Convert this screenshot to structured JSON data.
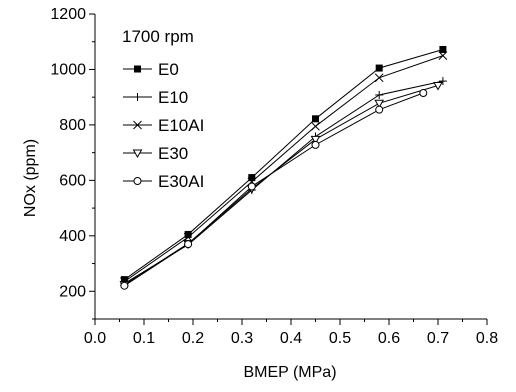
{
  "chart_data": {
    "type": "line",
    "title": "",
    "annotation": "1700 rpm",
    "xlabel": "BMEP (MPa)",
    "ylabel": "NOx (ppm)",
    "xlim": [
      0.0,
      0.8
    ],
    "ylim": [
      100,
      1200
    ],
    "x_ticks": [
      0.0,
      0.1,
      0.2,
      0.3,
      0.4,
      0.5,
      0.6,
      0.7,
      0.8
    ],
    "x_tick_labels": [
      "0.0",
      "0.1",
      "0.2",
      "0.3",
      "0.4",
      "0.5",
      "0.6",
      "0.7",
      "0.8"
    ],
    "y_ticks": [
      200,
      400,
      600,
      800,
      1000,
      1200
    ],
    "y_tick_labels": [
      "200",
      "400",
      "600",
      "800",
      "1000",
      "1200"
    ],
    "grid": false,
    "legend_placement": "top-left",
    "series": [
      {
        "name": "E0",
        "marker": "filled-square",
        "x": [
          0.06,
          0.19,
          0.32,
          0.45,
          0.58,
          0.71
        ],
        "y": [
          242,
          405,
          610,
          822,
          1005,
          1072
        ]
      },
      {
        "name": "E10",
        "marker": "plus",
        "x": [
          0.06,
          0.19,
          0.32,
          0.45,
          0.58,
          0.71
        ],
        "y": [
          228,
          368,
          565,
          758,
          908,
          958
        ]
      },
      {
        "name": "E10AI",
        "marker": "cross",
        "x": [
          0.06,
          0.19,
          0.32,
          0.45,
          0.58,
          0.71
        ],
        "y": [
          235,
          395,
          595,
          795,
          970,
          1050
        ]
      },
      {
        "name": "E30",
        "marker": "down-triangle",
        "x": [
          0.06,
          0.19,
          0.32,
          0.45,
          0.58,
          0.7
        ],
        "y": [
          224,
          372,
          570,
          748,
          878,
          942
        ]
      },
      {
        "name": "E30AI",
        "marker": "open-circle",
        "x": [
          0.06,
          0.19,
          0.32,
          0.45,
          0.58,
          0.67
        ],
        "y": [
          220,
          370,
          578,
          728,
          855,
          915
        ]
      }
    ]
  }
}
